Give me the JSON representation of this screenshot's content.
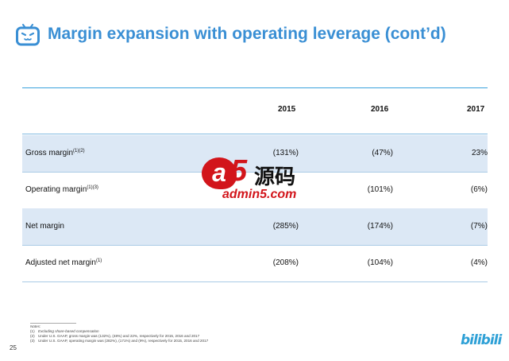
{
  "header": {
    "title": "Margin expansion with operating leverage (cont’d)"
  },
  "table": {
    "columns": [
      "2015",
      "2016",
      "2017"
    ],
    "rows": [
      {
        "label": "Gross margin",
        "sup": "(1)(2)",
        "values": [
          "(131%)",
          "(47%)",
          "23%"
        ]
      },
      {
        "label": "Operating margin",
        "sup": "(1)(3)",
        "values": [
          "",
          "(101%)",
          "(6%)"
        ]
      },
      {
        "label": "Net margin",
        "sup": "",
        "values": [
          "(285%)",
          "(174%)",
          "(7%)"
        ]
      },
      {
        "label": "Adjusted net margin",
        "sup": "(1)",
        "values": [
          "(208%)",
          "(104%)",
          "(4%)"
        ]
      }
    ]
  },
  "watermark": {
    "glyph_a": "a",
    "glyph_5": "5",
    "cn": "源码",
    "url": "admin5.com"
  },
  "notes": {
    "title": "Notes:",
    "items": [
      {
        "num": "(1)",
        "text": "Excluding share-based compensation"
      },
      {
        "num": "(2)",
        "text": "Under U.S. GAAP, gross margin was (132%), (48%) and 22%, respectively for 2015, 2016 and 2017"
      },
      {
        "num": "(3)",
        "text": "Under U.S. GAAP, operating margin was (282%), (171%) and (9%), respectively for 2015, 2016 and 2017"
      }
    ]
  },
  "footer": {
    "page_number": "25",
    "brand": "bilibili"
  },
  "colors": {
    "title": "#3a8fd4",
    "accent_rule": "#3aa3dd",
    "row_shade": "#dce8f5",
    "watermark_red": "#d2151b"
  }
}
